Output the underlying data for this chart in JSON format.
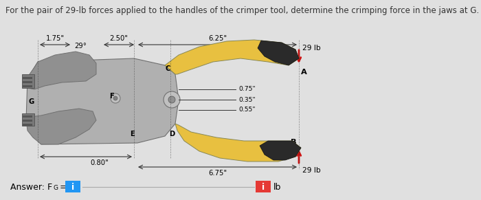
{
  "title": "For the pair of 29-lb forces applied to the handles of the crimper tool, determine the crimping force in the jaws at G.",
  "title_fontsize": 8.5,
  "bg_color": "#e0e0e0",
  "blue_box_color": "#2196F3",
  "red_box_color": "#e53935",
  "tool_gray_light": "#b0b0b0",
  "tool_gray_mid": "#909090",
  "tool_gray_dark": "#707070",
  "tool_yellow": "#e8c040",
  "tool_dark": "#2a2a2a",
  "line_color": "#333333",
  "arrow_color": "#cc1111",
  "dim_labels": [
    "1.75\"",
    "29°",
    "2.50\"",
    "6.25\"",
    "29 lb",
    "0.75\"",
    "0.35\"",
    "0.55\"",
    "0.80\"",
    "6.75\"",
    "29 lb"
  ],
  "point_labels": [
    "A",
    "B",
    "C",
    "D",
    "E",
    "G",
    "F"
  ],
  "ans_text": "Answer: F",
  "ans_sub": "G",
  "ans_eq": " =",
  "lb_label": "lb",
  "figsize": [
    7.0,
    2.91
  ],
  "dpi": 100
}
